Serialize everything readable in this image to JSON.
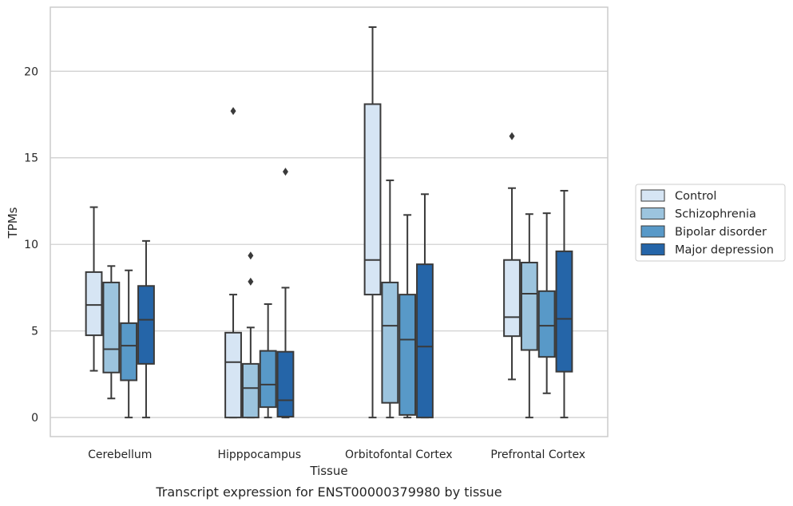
{
  "caption": "Transcript expression for ENST00000379980 by tissue",
  "chart_data": {
    "type": "boxplot",
    "xlabel": "Tissue",
    "ylabel": "TPMs",
    "ylim": [
      -1.1,
      23.7
    ],
    "yticks": [
      0,
      5,
      10,
      15,
      20
    ],
    "grid": "horizontal",
    "legend_position": "right",
    "categories": [
      "Cerebellum",
      "Hipppocampus",
      "Orbitofontal Cortex",
      "Prefrontal Cortex"
    ],
    "series": [
      {
        "name": "Control",
        "color": "#d6e5f4",
        "boxes": [
          {
            "whislo": 2.7,
            "q1": 4.75,
            "med": 6.5,
            "q3": 8.4,
            "whishi": 12.15,
            "fliers": []
          },
          {
            "whislo": 0.0,
            "q1": 0.0,
            "med": 3.2,
            "q3": 4.9,
            "whishi": 7.1,
            "fliers": [
              17.7
            ]
          },
          {
            "whislo": 0.0,
            "q1": 7.1,
            "med": 9.1,
            "q3": 18.1,
            "whishi": 22.55,
            "fliers": []
          },
          {
            "whislo": 2.2,
            "q1": 4.7,
            "med": 5.8,
            "q3": 9.1,
            "whishi": 13.25,
            "fliers": [
              16.25
            ]
          }
        ]
      },
      {
        "name": "Schizophrenia",
        "color": "#9cc4de",
        "boxes": [
          {
            "whislo": 1.1,
            "q1": 2.6,
            "med": 3.95,
            "q3": 7.8,
            "whishi": 8.75,
            "fliers": []
          },
          {
            "whislo": 0.0,
            "q1": 0.0,
            "med": 1.7,
            "q3": 3.1,
            "whishi": 5.2,
            "fliers": [
              7.85,
              9.35
            ]
          },
          {
            "whislo": 0.0,
            "q1": 0.85,
            "med": 5.3,
            "q3": 7.8,
            "whishi": 13.7,
            "fliers": []
          },
          {
            "whislo": 0.0,
            "q1": 3.9,
            "med": 7.15,
            "q3": 8.95,
            "whishi": 11.75,
            "fliers": []
          }
        ]
      },
      {
        "name": "Bipolar disorder",
        "color": "#5899c8",
        "boxes": [
          {
            "whislo": 0.0,
            "q1": 2.15,
            "med": 4.15,
            "q3": 5.45,
            "whishi": 8.5,
            "fliers": []
          },
          {
            "whislo": 0.0,
            "q1": 0.6,
            "med": 1.9,
            "q3": 3.85,
            "whishi": 6.55,
            "fliers": []
          },
          {
            "whislo": 0.0,
            "q1": 0.15,
            "med": 4.5,
            "q3": 7.1,
            "whishi": 11.7,
            "fliers": []
          },
          {
            "whislo": 1.4,
            "q1": 3.5,
            "med": 5.3,
            "q3": 7.3,
            "whishi": 11.8,
            "fliers": []
          }
        ]
      },
      {
        "name": "Major depression",
        "color": "#2565a8",
        "boxes": [
          {
            "whislo": 0.0,
            "q1": 3.1,
            "med": 5.65,
            "q3": 7.6,
            "whishi": 10.2,
            "fliers": []
          },
          {
            "whislo": 0.0,
            "q1": 0.05,
            "med": 1.0,
            "q3": 3.8,
            "whishi": 7.5,
            "fliers": [
              14.2
            ]
          },
          {
            "whislo": 0.0,
            "q1": 0.0,
            "med": 4.1,
            "q3": 8.85,
            "whishi": 12.9,
            "fliers": []
          },
          {
            "whislo": 0.0,
            "q1": 2.65,
            "med": 5.7,
            "q3": 9.6,
            "whishi": 13.1,
            "fliers": []
          }
        ]
      }
    ]
  }
}
